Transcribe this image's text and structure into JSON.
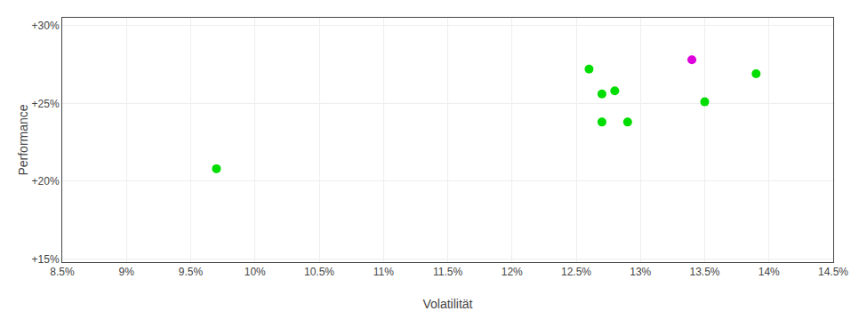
{
  "chart_data": {
    "type": "scatter",
    "xlabel": "Volatilität",
    "ylabel": "Performance",
    "xlim": [
      0.085,
      0.145
    ],
    "xticks": [
      {
        "value": 0.085,
        "label": "8.5%"
      },
      {
        "value": 0.09,
        "label": "9%"
      },
      {
        "value": 0.095,
        "label": "9.5%"
      },
      {
        "value": 0.1,
        "label": "10%"
      },
      {
        "value": 0.105,
        "label": "10.5%"
      },
      {
        "value": 0.11,
        "label": "11%"
      },
      {
        "value": 0.115,
        "label": "11.5%"
      },
      {
        "value": 0.12,
        "label": "12%"
      },
      {
        "value": 0.125,
        "label": "12.5%"
      },
      {
        "value": 0.13,
        "label": "13%"
      },
      {
        "value": 0.135,
        "label": "13.5%"
      },
      {
        "value": 0.14,
        "label": "14%"
      },
      {
        "value": 0.145,
        "label": "14.5%"
      }
    ],
    "ylim": [
      0.148,
      0.305
    ],
    "yticks": [
      {
        "value": 0.15,
        "label": "+15%"
      },
      {
        "value": 0.2,
        "label": "+20%"
      },
      {
        "value": 0.25,
        "label": "+25%"
      },
      {
        "value": 0.3,
        "label": "+30%"
      }
    ],
    "grid": true,
    "series": [
      {
        "color": "#00dd00",
        "x": [
          0.097,
          0.126,
          0.127,
          0.128,
          0.127,
          0.129,
          0.135,
          0.139
        ],
        "values": [
          0.208,
          0.272,
          0.256,
          0.258,
          0.238,
          0.238,
          0.251,
          0.269
        ]
      },
      {
        "color": "#dd00dd",
        "x": [
          0.134
        ],
        "values": [
          0.278
        ]
      }
    ]
  }
}
